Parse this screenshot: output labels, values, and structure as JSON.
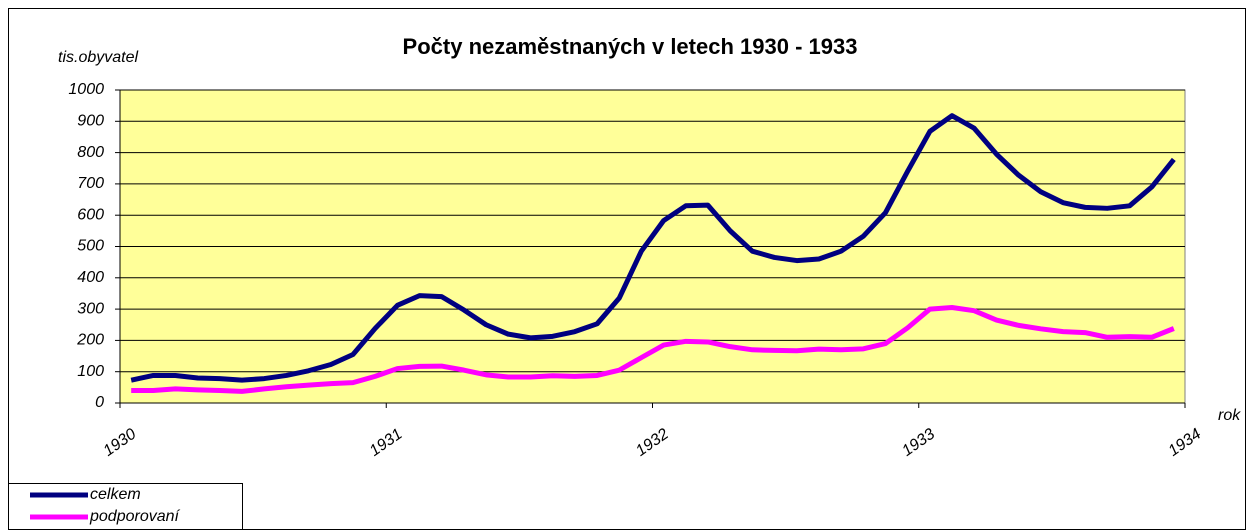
{
  "chart_data": {
    "type": "line",
    "title": "Počty nezaměstnaných v letech 1930 - 1933",
    "y_label": "tis.obyvatel",
    "x_label": "rok",
    "x": [
      1930.042,
      1930.125,
      1930.208,
      1930.292,
      1930.375,
      1930.458,
      1930.542,
      1930.625,
      1930.708,
      1930.792,
      1930.875,
      1930.958,
      1931.042,
      1931.125,
      1931.208,
      1931.292,
      1931.375,
      1931.458,
      1931.542,
      1931.625,
      1931.708,
      1931.792,
      1931.875,
      1931.958,
      1932.042,
      1932.125,
      1932.208,
      1932.292,
      1932.375,
      1932.458,
      1932.542,
      1932.625,
      1932.708,
      1932.792,
      1932.875,
      1932.958,
      1933.042,
      1933.125,
      1933.208,
      1933.292,
      1933.375,
      1933.458,
      1933.542,
      1933.625,
      1933.708,
      1933.792,
      1933.875,
      1933.958
    ],
    "series": [
      {
        "name": "celkem",
        "color": "#000080",
        "values": [
          73,
          88,
          88,
          80,
          78,
          73,
          78,
          88,
          103,
          123,
          155,
          238,
          312,
          343,
          340,
          297,
          250,
          220,
          208,
          213,
          228,
          253,
          335,
          485,
          583,
          630,
          632,
          550,
          485,
          465,
          455,
          460,
          485,
          533,
          608,
          740,
          868,
          918,
          878,
          795,
          728,
          675,
          640,
          625,
          622,
          630,
          690,
          778
        ]
      },
      {
        "name": "podporovaní",
        "color": "#ff00ff",
        "values": [
          40,
          40,
          45,
          42,
          40,
          37,
          45,
          52,
          57,
          62,
          65,
          85,
          110,
          117,
          118,
          105,
          90,
          83,
          83,
          87,
          85,
          88,
          105,
          145,
          185,
          197,
          195,
          180,
          170,
          168,
          167,
          172,
          170,
          173,
          190,
          240,
          300,
          305,
          295,
          265,
          248,
          237,
          228,
          225,
          210,
          212,
          210,
          238
        ]
      }
    ],
    "xlim": [
      1930,
      1934
    ],
    "xticks": [
      1930,
      1931,
      1932,
      1933,
      1934
    ],
    "ylim": [
      0,
      1000
    ],
    "yticks": [
      0,
      100,
      200,
      300,
      400,
      500,
      600,
      700,
      800,
      900,
      1000
    ],
    "grid": true,
    "plot_background": "#ffff99",
    "legend": "bottom-left"
  }
}
